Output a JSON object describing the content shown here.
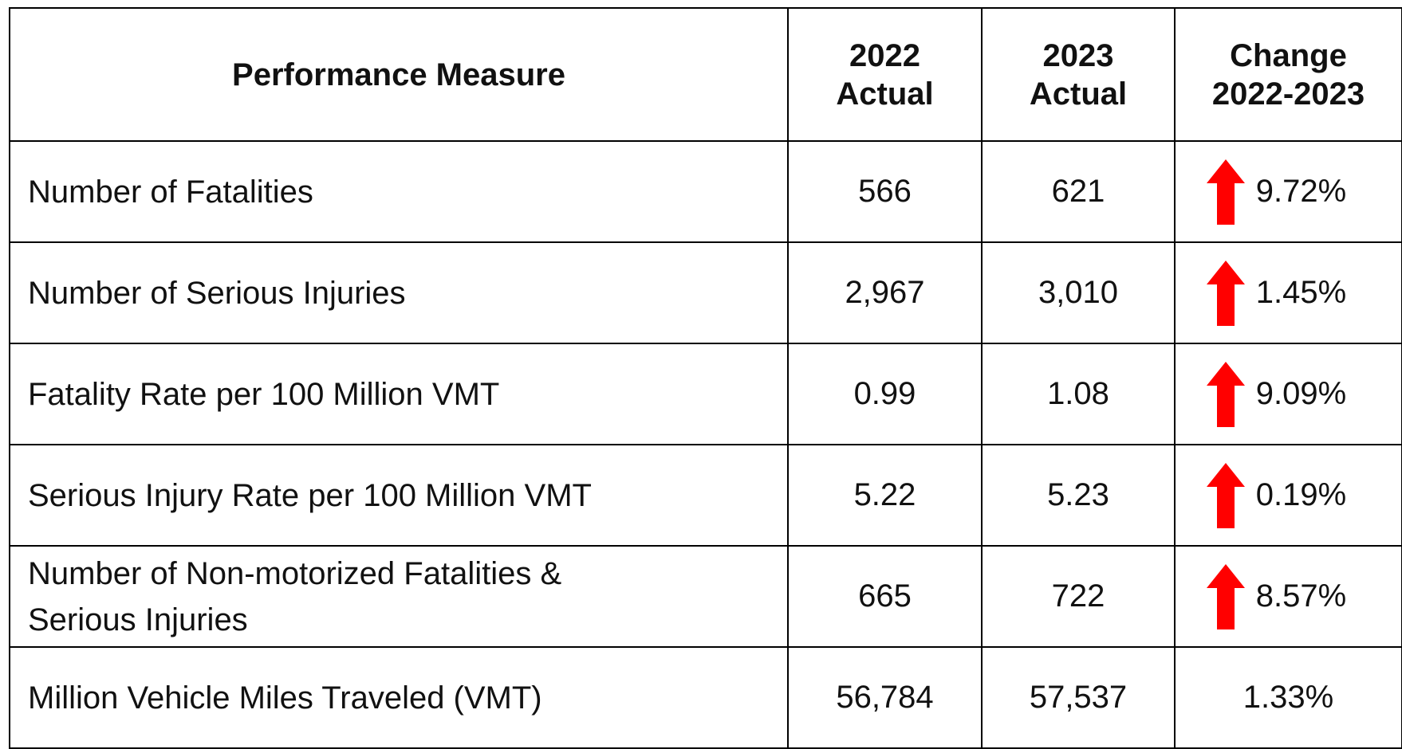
{
  "table": {
    "header": [
      "Performance Measure",
      "2022\nActual",
      "2023\nActual",
      "Change\n2022-2023"
    ],
    "rows": [
      [
        "Number of Fatalities",
        "566",
        "621",
        "9.72%"
      ],
      [
        "Number of Serious Injuries",
        "2,967",
        "3,010",
        "1.45%"
      ],
      [
        "Fatality Rate per 100 Million VMT",
        "0.99",
        "1.08",
        "9.09%"
      ],
      [
        "Serious Injury Rate per 100 Million VMT",
        "5.22",
        "5.23",
        "0.19%"
      ],
      [
        "Number of Non-motorized Fatalities & Serious Injuries",
        "665",
        "722",
        "8.57%"
      ],
      [
        "Million Vehicle Miles Traveled (VMT)",
        "56,784",
        "57,537",
        "1.33%"
      ]
    ]
  }
}
